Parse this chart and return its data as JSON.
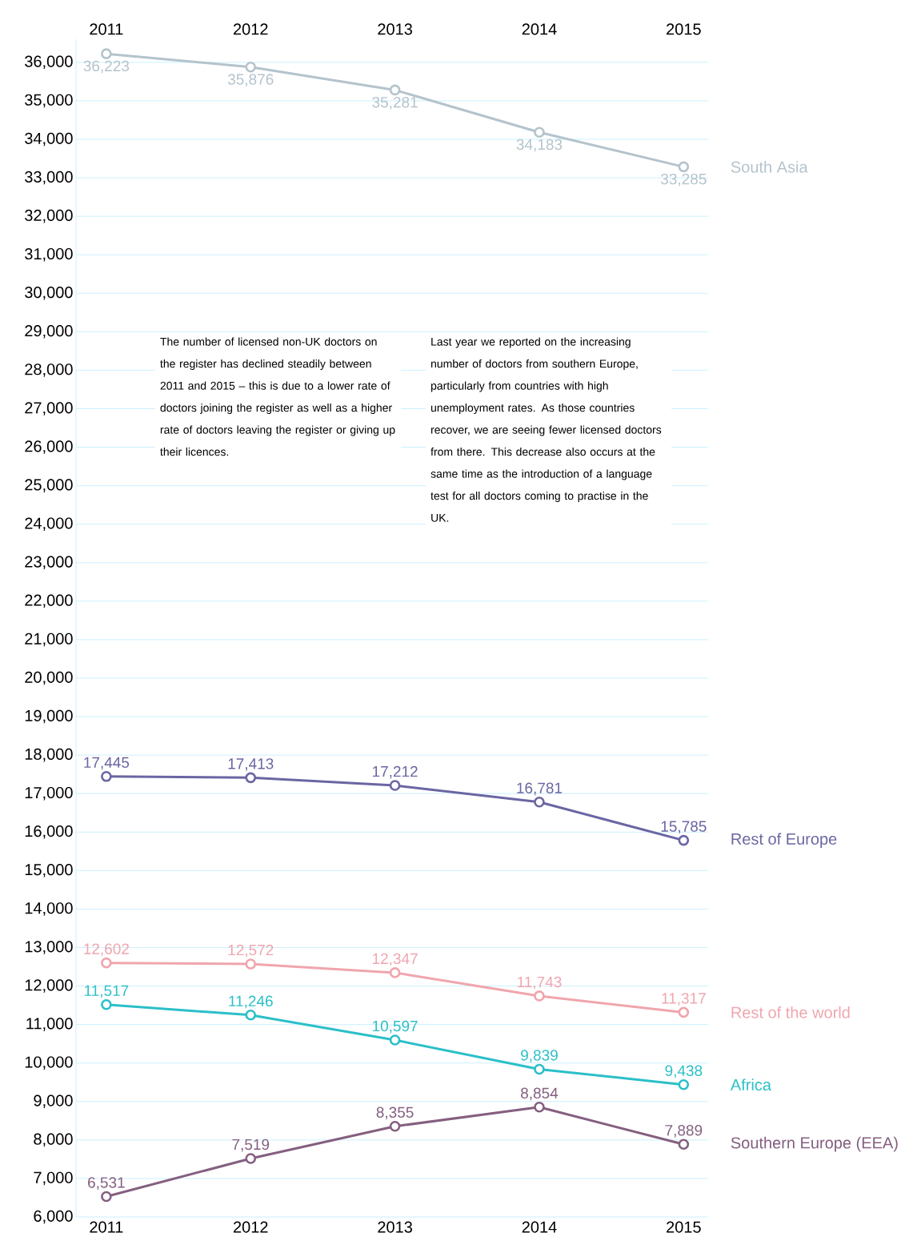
{
  "chart_data": {
    "type": "line",
    "categories": [
      "2011",
      "2012",
      "2013",
      "2014",
      "2015"
    ],
    "series": [
      {
        "name": "South Asia",
        "color": "#b4c3cc",
        "values": [
          36223,
          35876,
          35281,
          34183,
          33285
        ],
        "value_labels": [
          "36,223",
          "35,876",
          "35,281",
          "34,183",
          "33,285"
        ]
      },
      {
        "name": "Rest of Europe",
        "color": "#6a66a3",
        "values": [
          17445,
          17413,
          17212,
          16781,
          15785
        ],
        "value_labels": [
          "17,445",
          "17,413",
          "17,212",
          "16,781",
          "15,785"
        ]
      },
      {
        "name": "Rest of the world",
        "color": "#f0a5ad",
        "values": [
          12602,
          12572,
          12347,
          11743,
          11317
        ],
        "value_labels": [
          "12,602",
          "12,572",
          "12,347",
          "11,743",
          "11,317"
        ]
      },
      {
        "name": "Africa",
        "color": "#2bbfc8",
        "values": [
          11517,
          11246,
          10597,
          9839,
          9438
        ],
        "value_labels": [
          "11,517",
          "11,246",
          "10,597",
          "9,839",
          "9,438"
        ]
      },
      {
        "name": "Southern Europe (EEA)",
        "color": "#845f80",
        "values": [
          6531,
          7519,
          8355,
          8854,
          7889
        ],
        "value_labels": [
          "6,531",
          "7,519",
          "8,355",
          "8,854",
          "7,889"
        ]
      }
    ],
    "ylim": [
      6000,
      36600
    ],
    "yticks": [
      {
        "value": 6000,
        "label": "6,000"
      },
      {
        "value": 7000,
        "label": "7,000"
      },
      {
        "value": 8000,
        "label": "8,000"
      },
      {
        "value": 9000,
        "label": "9,000"
      },
      {
        "value": 10000,
        "label": "10,000"
      },
      {
        "value": 11000,
        "label": "11,000"
      },
      {
        "value": 12000,
        "label": "12,000"
      },
      {
        "value": 13000,
        "label": "13,000"
      },
      {
        "value": 14000,
        "label": "14,000"
      },
      {
        "value": 15000,
        "label": "15,000"
      },
      {
        "value": 16000,
        "label": "16,000"
      },
      {
        "value": 17000,
        "label": "17,000"
      },
      {
        "value": 18000,
        "label": "18,000"
      },
      {
        "value": 19000,
        "label": "19,000"
      },
      {
        "value": 20000,
        "label": "20,000"
      },
      {
        "value": 21000,
        "label": "21,000"
      },
      {
        "value": 22000,
        "label": "22,000"
      },
      {
        "value": 23000,
        "label": "23,000"
      },
      {
        "value": 24000,
        "label": "24,000"
      },
      {
        "value": 25000,
        "label": "25,000"
      },
      {
        "value": 26000,
        "label": "26,000"
      },
      {
        "value": 27000,
        "label": "27,000"
      },
      {
        "value": 28000,
        "label": "28,000"
      },
      {
        "value": 29000,
        "label": "29,000"
      },
      {
        "value": 30000,
        "label": "30,000"
      },
      {
        "value": 31000,
        "label": "31,000"
      },
      {
        "value": 32000,
        "label": "32,000"
      },
      {
        "value": 33000,
        "label": "33,000"
      },
      {
        "value": 34000,
        "label": "34,000"
      },
      {
        "value": 35000,
        "label": "35,000"
      },
      {
        "value": 36000,
        "label": "36,000"
      }
    ],
    "grid": "y",
    "marker": "circle",
    "line_style": "solid",
    "legend": false,
    "annotations": [
      "The number of licensed non-UK doctors on the register has declined steadily between 2011 and 2015 – this is due to a lower rate of doctors joining the register as well as a higher rate of doctors leaving the register or giving up their licences.",
      "Last year we reported on the increasing number of doctors from southern Europe, particularly from countries with high unemployment rates. As those countries recover, we are seeing fewer licensed doctors from there. This decrease also occurs at the same time as the introduction of a language test for all doctors coming to practise in the UK."
    ]
  }
}
